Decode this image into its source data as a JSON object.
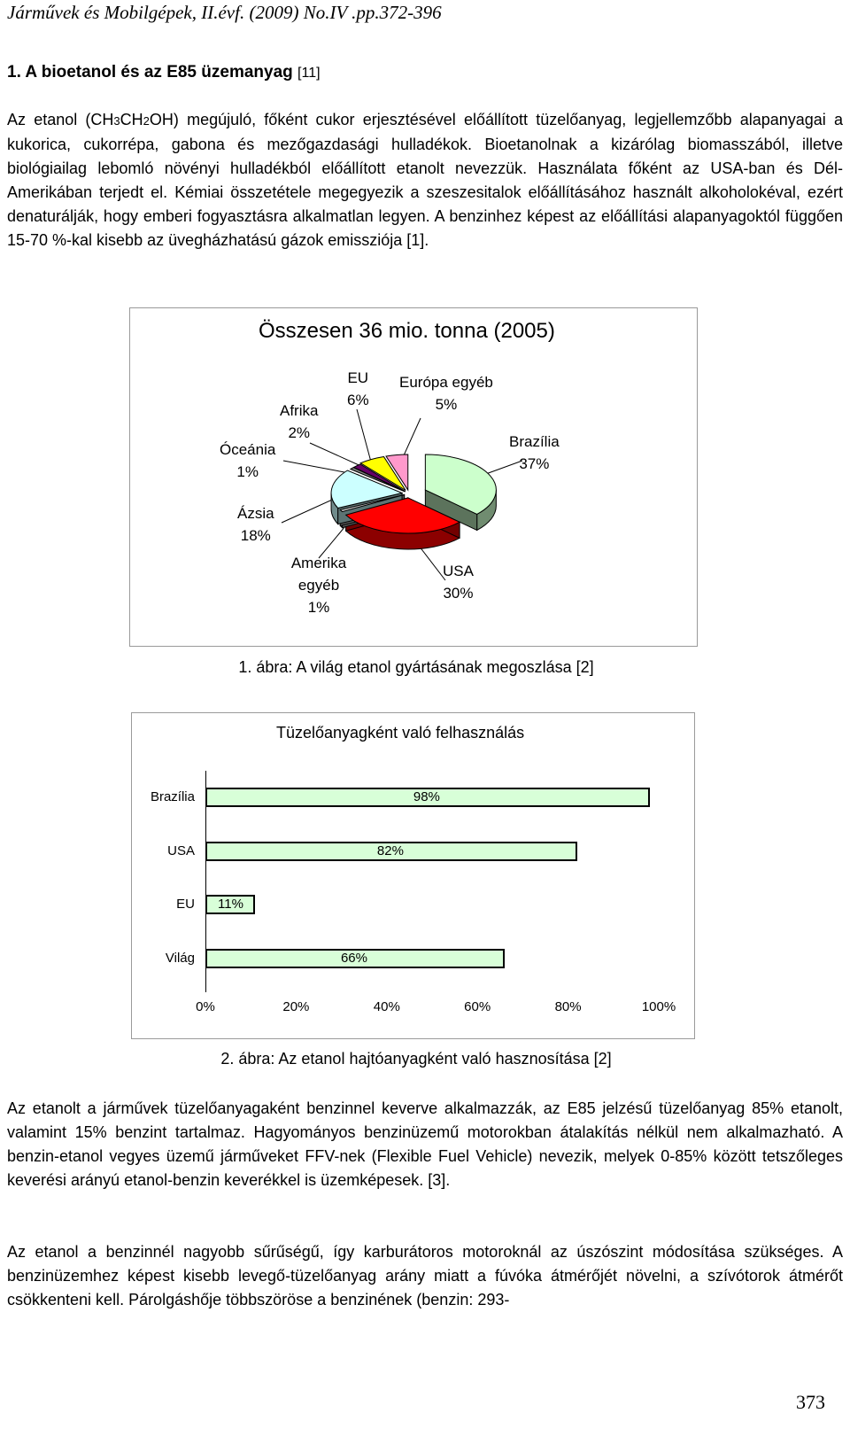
{
  "header": "Járművek és Mobilgépek, II.évf. (2009) No.IV .pp.372-396",
  "section": {
    "title": "1. A bioetanol és az E85 üzemanyag",
    "ref": "[11]"
  },
  "para1": "Az etanol (CH3CH2OH) megújuló, főként cukor erjesztésével előállított tüzelőanyag, legjellemzőbb alapanyagai a kukorica, cukorrépa, gabona és mezőgazdasági hulladékok. Bioetanolnak a kizárólag biomasszából, illetve biológiailag lebomló növényi hulladékból előállított etanolt nevezzük. Használata főként az USA-ban és Dél-Amerikában terjedt el. Kémiai összetétele megegyezik a szeszesitalok előállításához használt alkoholokéval, ezért denaturálják, hogy emberi fogyasztásra alkalmatlan legyen. A benzinhez képest az előállítási alapanyagoktól függően 15-70 %-kal kisebb az üvegházhatású gázok emissziója [1].",
  "chart_data": [
    {
      "type": "pie",
      "title": "Összesen 36 mio. tonna (2005)",
      "categories": [
        "Brazília",
        "USA",
        "Amerika egyéb",
        "Ázsia",
        "Óceánia",
        "Afrika",
        "EU",
        "Európa egyéb"
      ],
      "values": [
        37,
        30,
        1,
        18,
        1,
        2,
        6,
        5
      ],
      "labels": [
        "37%",
        "30%",
        "1%",
        "18%",
        "1%",
        "2%",
        "6%",
        "5%"
      ],
      "colors": [
        "#ccffcc",
        "#ff0000",
        "#c0c0c0",
        "#ccffff",
        "#808080",
        "#660066",
        "#ffff00",
        "#ff99cc"
      ],
      "caption": "1. ábra: A világ etanol gyártásának megoszlása [2]"
    },
    {
      "type": "bar",
      "orientation": "horizontal",
      "title": "Tüzelőanyagként való felhasználás",
      "categories": [
        "Brazília",
        "USA",
        "EU",
        "Világ"
      ],
      "values": [
        98,
        82,
        11,
        66
      ],
      "labels": [
        "98%",
        "82%",
        "11%",
        "66%"
      ],
      "xticks": [
        "0%",
        "20%",
        "40%",
        "60%",
        "80%",
        "100%"
      ],
      "xlim": [
        0,
        100
      ],
      "bar_color": "#d8ffd8",
      "caption": "2. ábra: Az etanol hajtóanyagként való hasznosítása [2]"
    }
  ],
  "para2": "Az etanolt a járművek tüzelőanyagaként benzinnel keverve alkalmazzák, az E85 jelzésű tüzelőanyag 85% etanolt, valamint 15% benzint tartalmaz. Hagyományos benzinüzemű motorokban átalakítás nélkül nem alkalmazható. A benzin-etanol vegyes üzemű járműveket FFV-nek (Flexible Fuel Vehicle) nevezik, melyek 0-85% között tetszőleges keverési arányú etanol-benzin keverékkel is üzemképesek. [3].",
  "para3": "Az etanol a benzinnél nagyobb sűrűségű, így karburátoros motoroknál az úszószint módosítása szükséges. A benzinüzemhez képest kisebb levegő-tüzelőanyag arány miatt a fúvóka átmérőjét növelni, a szívótorok átmérőt csökkenteni kell. Párolgáshője többszöröse a benzinének (benzin: 293-",
  "page_number": "373"
}
